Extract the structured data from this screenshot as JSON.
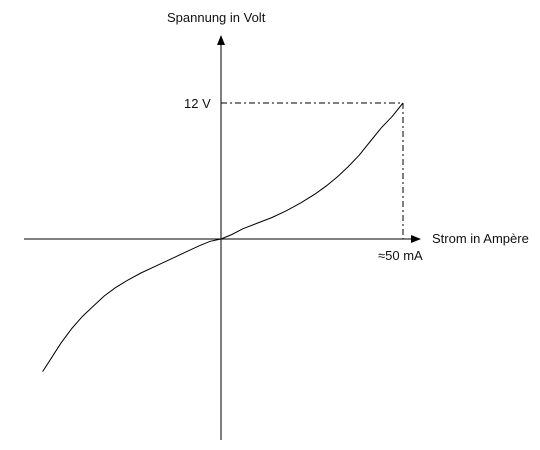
{
  "chart_data": {
    "type": "line",
    "ylabel": "Spannung in Volt",
    "xlabel": "Strom in Ampère",
    "y_marker_label": "12 V",
    "x_marker_label": "≈50 mA",
    "x_marker_value": 50,
    "y_marker_value": 12,
    "xlim": [
      -55,
      55
    ],
    "ylim": [
      -17.5,
      14
    ],
    "grid": false,
    "series": [
      {
        "x": [
          -49,
          -47,
          -44,
          -41,
          -38,
          -35,
          -32,
          -29,
          -26,
          -22,
          -18,
          -14,
          -10,
          -6,
          -3,
          0,
          3,
          6,
          10,
          14,
          18,
          22,
          26,
          29,
          32,
          35,
          38,
          41,
          44,
          47,
          50
        ],
        "y": [
          -11.7,
          -10.7,
          -9.2,
          -7.9,
          -6.8,
          -5.9,
          -5.0,
          -4.3,
          -3.7,
          -3.0,
          -2.4,
          -1.8,
          -1.2,
          -0.6,
          -0.2,
          0,
          0.4,
          0.9,
          1.4,
          1.9,
          2.5,
          3.2,
          4.0,
          4.7,
          5.5,
          6.4,
          7.4,
          8.6,
          9.8,
          10.8,
          12.0
        ]
      }
    ]
  },
  "colors": {
    "axis": "#000000",
    "curve": "#000000",
    "text": "#111111"
  }
}
